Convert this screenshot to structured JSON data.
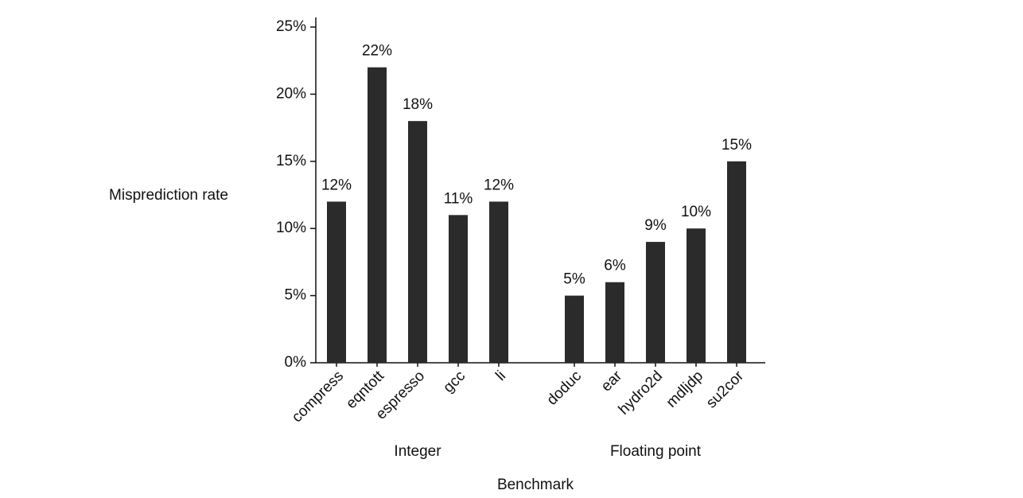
{
  "chart_data": {
    "type": "bar",
    "y_label": "Misprediction rate",
    "x_label": "Benchmark",
    "color": "#2b2b2b",
    "ylim": [
      0,
      25
    ],
    "yticks": [
      {
        "value": 0,
        "label": "0%"
      },
      {
        "value": 5,
        "label": "5%"
      },
      {
        "value": 10,
        "label": "10%"
      },
      {
        "value": 15,
        "label": "15%"
      },
      {
        "value": 20,
        "label": "20%"
      },
      {
        "value": 25,
        "label": "25%"
      }
    ],
    "groups": [
      {
        "name": "Integer",
        "categories": [
          "compress",
          "eqntott",
          "espresso",
          "gcc",
          "li"
        ],
        "values": [
          12,
          22,
          18,
          11,
          12
        ],
        "value_labels": [
          "12%",
          "22%",
          "18%",
          "11%",
          "12%"
        ]
      },
      {
        "name": "Floating point",
        "categories": [
          "doduc",
          "ear",
          "hydro2d",
          "mdljdp",
          "su2cor"
        ],
        "values": [
          5,
          6,
          9,
          10,
          15
        ],
        "value_labels": [
          "5%",
          "6%",
          "9%",
          "10%",
          "15%"
        ]
      }
    ]
  }
}
